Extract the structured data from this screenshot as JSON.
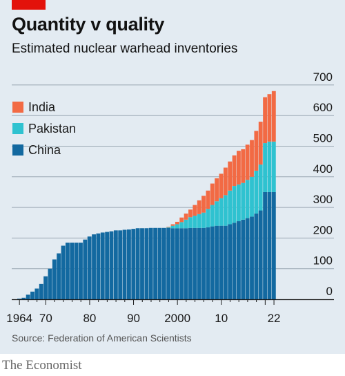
{
  "header": {
    "title": "Quantity v quality",
    "subtitle": "Estimated nuclear warhead inventories"
  },
  "source": "Source: Federation of American Scientists",
  "brand": "The Economist",
  "colors": {
    "background": "#e3ebf2",
    "accent": "#e3120b",
    "india": "#f26a44",
    "pakistan": "#2fc2d0",
    "china": "#1369a0",
    "grid": "#9aa7b2"
  },
  "chart_data": {
    "type": "bar",
    "stacked": true,
    "title": "Quantity v quality",
    "subtitle": "Estimated nuclear warhead inventories",
    "xlabel": "",
    "ylabel": "",
    "ylim": [
      0,
      700
    ],
    "y_ticks": [
      0,
      100,
      200,
      300,
      400,
      500,
      600,
      700
    ],
    "y_axis_side": "right",
    "x_ticks": [
      {
        "year": 1964,
        "label": "1964"
      },
      {
        "year": 1970,
        "label": "70"
      },
      {
        "year": 1980,
        "label": "80"
      },
      {
        "year": 1990,
        "label": "90"
      },
      {
        "year": 2000,
        "label": "2000"
      },
      {
        "year": 2010,
        "label": "10"
      },
      {
        "year": 2022,
        "label": "22"
      }
    ],
    "legend_position": "top-left",
    "grid": true,
    "x": [
      1964,
      1965,
      1966,
      1967,
      1968,
      1969,
      1970,
      1971,
      1972,
      1973,
      1974,
      1975,
      1976,
      1977,
      1978,
      1979,
      1980,
      1981,
      1982,
      1983,
      1984,
      1985,
      1986,
      1987,
      1988,
      1989,
      1990,
      1991,
      1992,
      1993,
      1994,
      1995,
      1996,
      1997,
      1998,
      1999,
      2000,
      2001,
      2002,
      2003,
      2004,
      2005,
      2006,
      2007,
      2008,
      2009,
      2010,
      2011,
      2012,
      2013,
      2014,
      2015,
      2016,
      2017,
      2018,
      2019,
      2020,
      2021,
      2022
    ],
    "series": [
      {
        "name": "China",
        "values": [
          2,
          5,
          15,
          25,
          35,
          50,
          75,
          100,
          130,
          150,
          175,
          185,
          185,
          185,
          185,
          195,
          205,
          212,
          215,
          218,
          220,
          222,
          225,
          225,
          227,
          228,
          230,
          232,
          232,
          232,
          233,
          233,
          233,
          233,
          233,
          232,
          232,
          232,
          232,
          233,
          233,
          233,
          233,
          235,
          238,
          240,
          240,
          240,
          245,
          250,
          255,
          260,
          265,
          270,
          280,
          290,
          350,
          350,
          350
        ]
      },
      {
        "name": "Pakistan",
        "values": [
          0,
          0,
          0,
          0,
          0,
          0,
          0,
          0,
          0,
          0,
          0,
          0,
          0,
          0,
          0,
          0,
          0,
          0,
          0,
          0,
          0,
          0,
          0,
          0,
          0,
          0,
          0,
          0,
          0,
          0,
          0,
          0,
          0,
          0,
          2,
          8,
          13,
          20,
          28,
          35,
          40,
          45,
          50,
          60,
          70,
          80,
          90,
          100,
          110,
          120,
          120,
          120,
          125,
          130,
          140,
          150,
          160,
          165,
          165
        ]
      },
      {
        "name": "India",
        "values": [
          0,
          0,
          0,
          0,
          0,
          0,
          0,
          0,
          0,
          0,
          0,
          0,
          0,
          0,
          0,
          0,
          0,
          0,
          0,
          0,
          0,
          0,
          0,
          0,
          0,
          0,
          0,
          0,
          0,
          0,
          0,
          0,
          0,
          0,
          2,
          5,
          8,
          15,
          20,
          25,
          35,
          45,
          55,
          60,
          70,
          75,
          80,
          90,
          95,
          100,
          110,
          110,
          115,
          120,
          130,
          140,
          150,
          155,
          165
        ]
      }
    ]
  }
}
